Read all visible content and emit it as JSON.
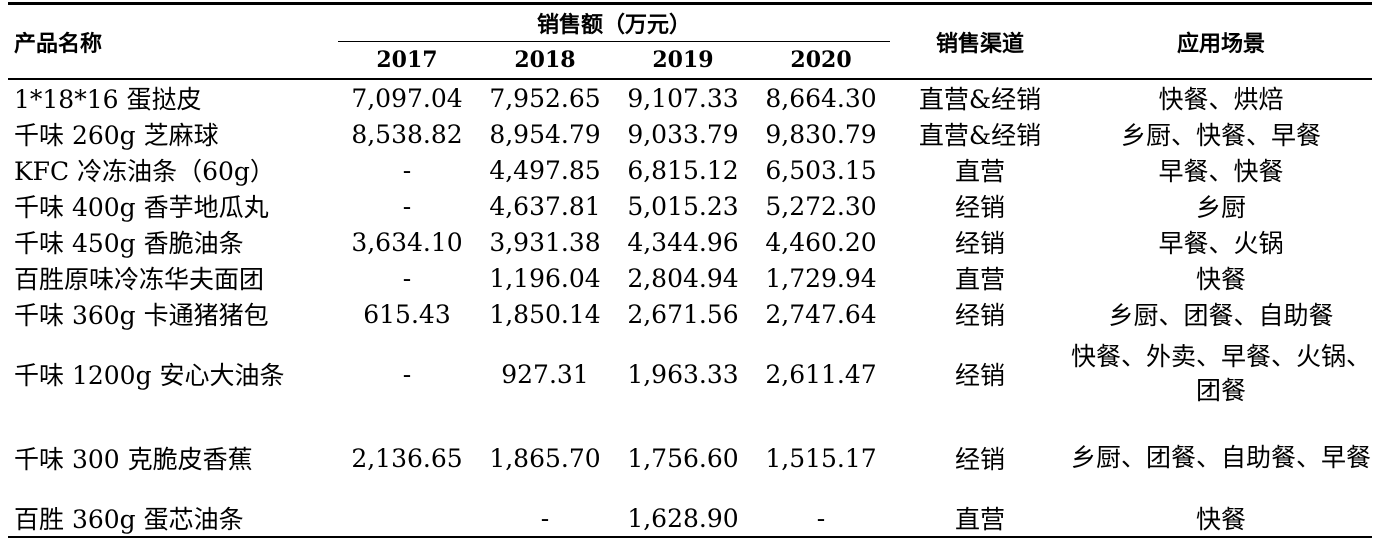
{
  "table": {
    "headers": {
      "product": "产品名称",
      "sales_group": "销售额（万元）",
      "years": [
        "2017",
        "2018",
        "2019",
        "2020"
      ],
      "channel": "销售渠道",
      "scenario": "应用场景"
    },
    "rows": [
      {
        "name": "1*18*16 蛋挞皮",
        "v": [
          "7,097.04",
          "7,952.65",
          "9,107.33",
          "8,664.30"
        ],
        "channel": "直营&经销",
        "scenario": "快餐、烘焙"
      },
      {
        "name": "千味 260g 芝麻球",
        "v": [
          "8,538.82",
          "8,954.79",
          "9,033.79",
          "9,830.79"
        ],
        "channel": "直营&经销",
        "scenario": "乡厨、快餐、早餐"
      },
      {
        "name": "KFC 冷冻油条（60g）",
        "v": [
          "-",
          "4,497.85",
          "6,815.12",
          "6,503.15"
        ],
        "channel": "直营",
        "scenario": "早餐、快餐"
      },
      {
        "name": "千味 400g 香芋地瓜丸",
        "v": [
          "-",
          "4,637.81",
          "5,015.23",
          "5,272.30"
        ],
        "channel": "经销",
        "scenario": "乡厨"
      },
      {
        "name": "千味 450g 香脆油条",
        "v": [
          "3,634.10",
          "3,931.38",
          "4,344.96",
          "4,460.20"
        ],
        "channel": "经销",
        "scenario": "早餐、火锅"
      },
      {
        "name": "百胜原味冷冻华夫面团",
        "v": [
          "-",
          "1,196.04",
          "2,804.94",
          "1,729.94"
        ],
        "channel": "直营",
        "scenario": "快餐"
      },
      {
        "name": "千味 360g 卡通猪猪包",
        "v": [
          "615.43",
          "1,850.14",
          "2,671.56",
          "2,747.64"
        ],
        "channel": "经销",
        "scenario": "乡厨、团餐、自助餐"
      },
      {
        "name": "千味 1200g 安心大油条",
        "v": [
          "-",
          "927.31",
          "1,963.33",
          "2,611.47"
        ],
        "channel": "经销",
        "scenario": "快餐、外卖、早餐、火锅、团餐"
      },
      {
        "name": "千味 300 克脆皮香蕉",
        "v": [
          "2,136.65",
          "1,865.70",
          "1,756.60",
          "1,515.17"
        ],
        "channel": "经销",
        "scenario": "乡厨、团餐、自助餐、早餐"
      },
      {
        "name": "百胜 360g 蛋芯油条",
        "v": [
          "",
          "-",
          "1,628.90",
          "-"
        ],
        "channel": "直营",
        "scenario": "快餐"
      }
    ]
  }
}
